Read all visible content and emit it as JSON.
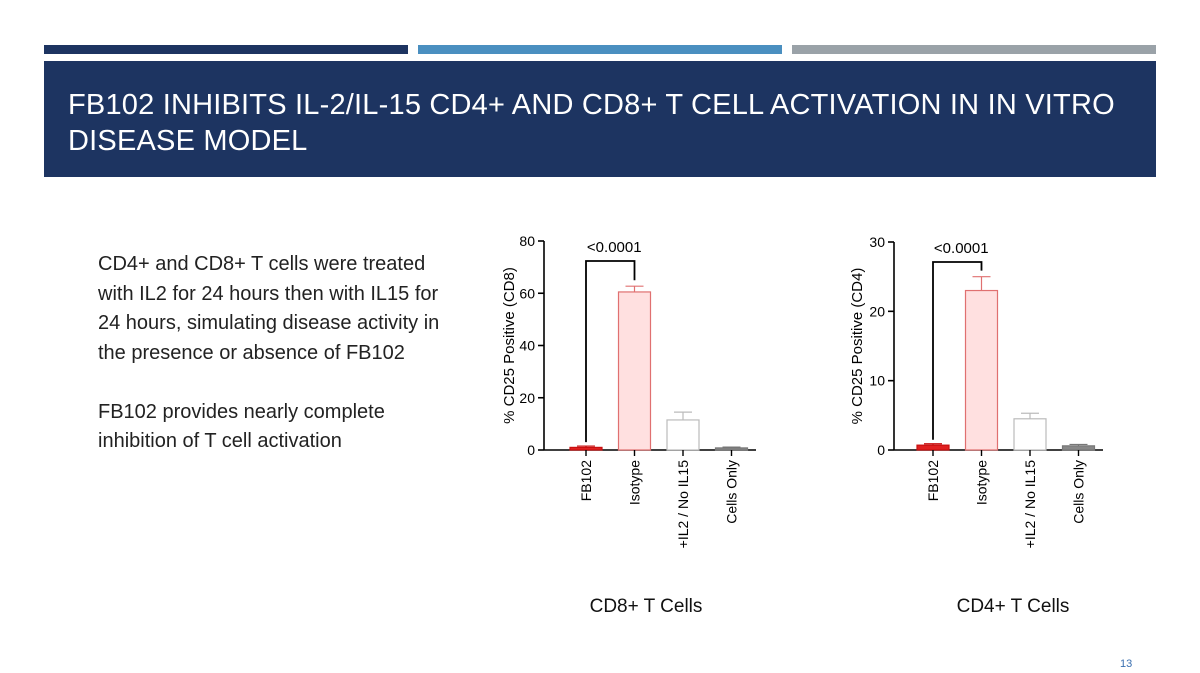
{
  "slide": {
    "title": "FB102 INHIBITS IL-2/IL-15 CD4+ AND CD8+ T CELL ACTIVATION IN IN VITRO DISEASE MODEL",
    "body_paragraphs": [
      "CD4+ and CD8+ T cells were treated with IL2 for 24 hours then with IL15 for 24 hours, simulating disease activity in the presence or absence of FB102",
      "FB102 provides nearly complete inhibition of T cell activation"
    ],
    "page_number": "13",
    "strip_colors": [
      "#1d3461",
      "#4a8fc0",
      "#9aa2a8"
    ]
  },
  "chart_data": [
    {
      "type": "bar",
      "title": "CD8+ T Cells",
      "ylabel": "% CD25 Positive (CD8)",
      "categories": [
        "FB102",
        "Isotype",
        "+IL2 / No IL15",
        "Cells Only"
      ],
      "values": [
        1,
        60.5,
        11.5,
        0.8
      ],
      "error": [
        0.5,
        2.2,
        3,
        0.3
      ],
      "ylim": [
        0,
        80
      ],
      "yticks": [
        0,
        20,
        40,
        60,
        80
      ],
      "fill_colors": [
        "#e02020",
        "#ffe0e0",
        "#ffffff",
        "#888888"
      ],
      "edge_colors": [
        "#c81010",
        "#e07070",
        "#bbbbbb",
        "#777777"
      ],
      "significance": {
        "from": 0,
        "to": 1,
        "label": "<0.0001"
      }
    },
    {
      "type": "bar",
      "title": "CD4+ T Cells",
      "ylabel": "% CD25 Positive (CD4)",
      "categories": [
        "FB102",
        "Isotype",
        "+IL2 / No IL15",
        "Cells Only"
      ],
      "values": [
        0.7,
        23,
        4.5,
        0.6
      ],
      "error": [
        0.2,
        2,
        0.8,
        0.2
      ],
      "ylim": [
        0,
        30
      ],
      "yticks": [
        0,
        10,
        20,
        30
      ],
      "fill_colors": [
        "#e02020",
        "#ffe0e0",
        "#ffffff",
        "#888888"
      ],
      "edge_colors": [
        "#c81010",
        "#e07070",
        "#bbbbbb",
        "#777777"
      ],
      "significance": {
        "from": 0,
        "to": 1,
        "label": "<0.0001"
      }
    }
  ]
}
